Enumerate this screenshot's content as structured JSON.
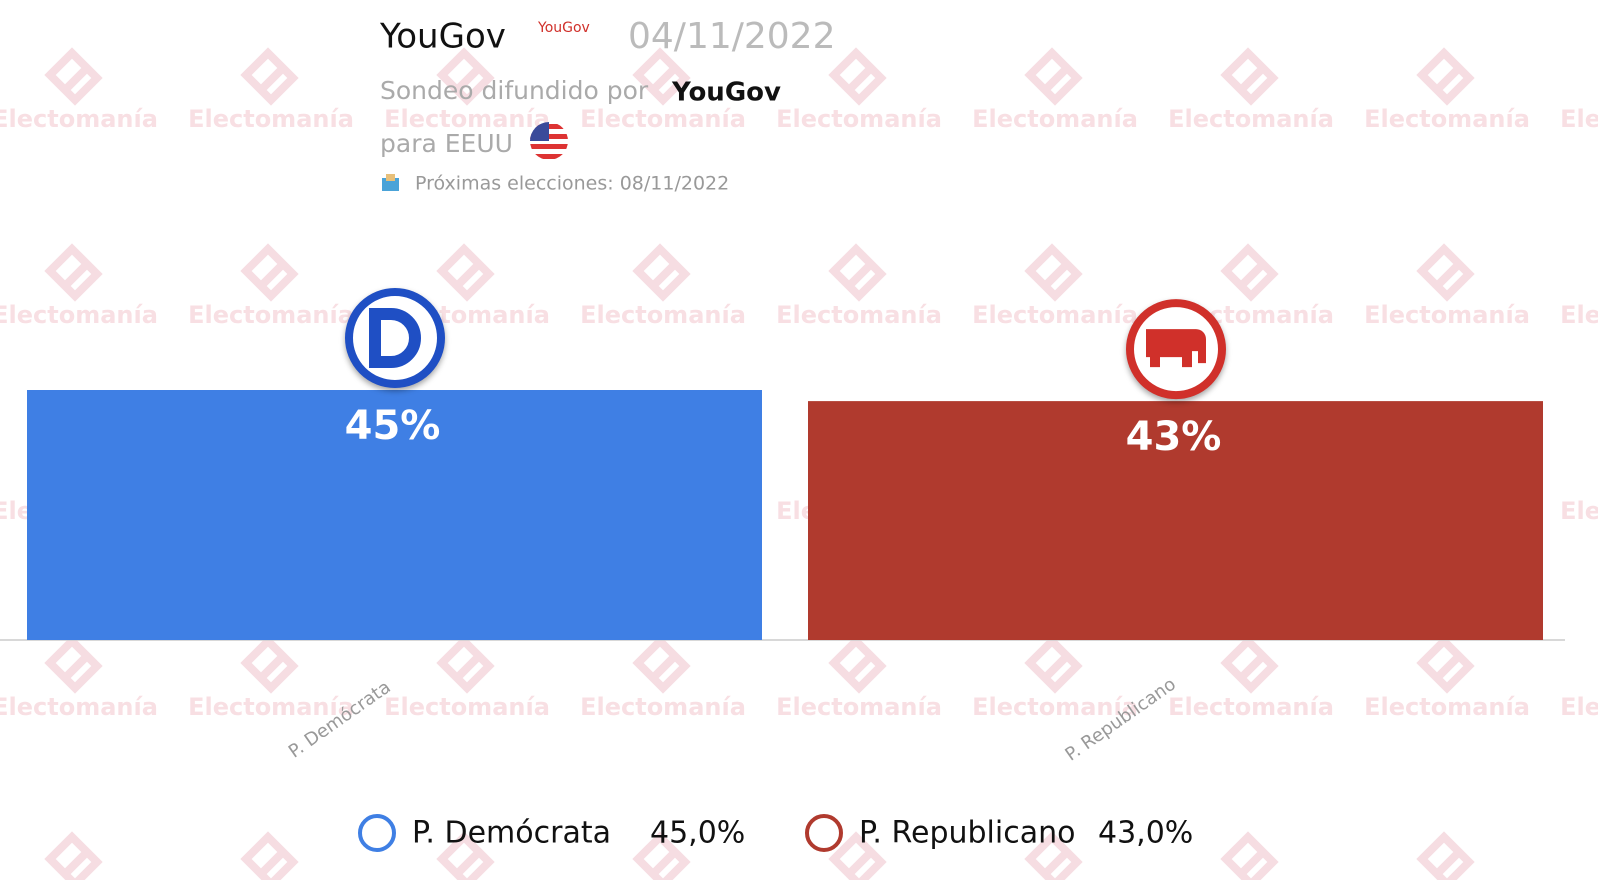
{
  "chart_data": {
    "type": "bar",
    "title": "YouGov",
    "logo_text": "YouGov",
    "date": "04/11/2022",
    "subtitle": "Sondeo difundido por",
    "pollster": "YouGov",
    "region": "para EEUU",
    "next_election": "Próximas elecciones: 08/11/2022",
    "watermark": "Electomanía",
    "categories": [
      "P. Demócrata",
      "P. Republicano"
    ],
    "values": [
      45,
      43
    ],
    "value_labels": [
      "45%",
      "43%"
    ],
    "legend_labels": [
      "45,0%",
      "43,0%"
    ],
    "colors": [
      "#3f7fe4",
      "#b03a2e"
    ]
  }
}
